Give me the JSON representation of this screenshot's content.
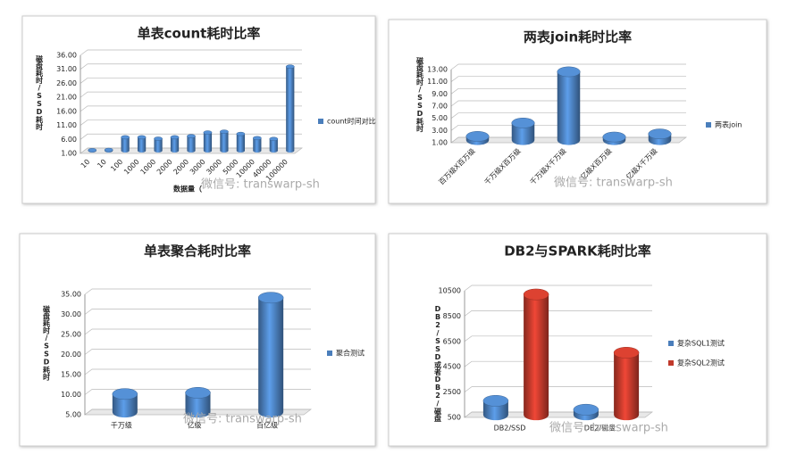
{
  "chart_data": [
    {
      "type": "bar",
      "title": "单表count耗时比率",
      "y_label": "磁盘耗时/SSD耗时",
      "x_label": "数据量（",
      "legend": "count时间对比",
      "watermark": "微信号: transwarp-sh",
      "color": "#4a7ebb",
      "categories": [
        "10",
        "10",
        "100",
        "1000",
        "1000",
        "2000",
        "2000",
        "3000",
        "3000",
        "5000",
        "10000",
        "40000",
        "100000"
      ],
      "values": [
        1.2,
        1.3,
        5.8,
        5.8,
        5.3,
        5.8,
        6.2,
        7.5,
        7.8,
        7.0,
        5.5,
        5.2,
        31.0
      ],
      "ylim": [
        1,
        36
      ],
      "yticks": [
        {
          "value": 1,
          "label": "1.00"
        },
        {
          "value": 6,
          "label": "6.00"
        },
        {
          "value": 11,
          "label": "11.00"
        },
        {
          "value": 16,
          "label": "16.00"
        },
        {
          "value": 21,
          "label": "21.00"
        },
        {
          "value": 26,
          "label": "26.00"
        },
        {
          "value": 31,
          "label": "31.00"
        },
        {
          "value": 36,
          "label": "36.00"
        }
      ]
    },
    {
      "type": "bar",
      "title": "两表join耗时比率",
      "y_label": "磁盘耗时/SSD耗时",
      "legend": "两表join",
      "watermark": "微信号: transwarp-sh",
      "color": "#4a7ebb",
      "categories": [
        "百万级X百万级",
        "千万级X百万级",
        "千万级X千万级",
        "亿级X百万级",
        "亿级X千万级"
      ],
      "values": [
        1.6,
        3.8,
        12.2,
        1.5,
        2.0
      ],
      "ylim": [
        1,
        13
      ],
      "yticks": [
        {
          "value": 1,
          "label": "1.00"
        },
        {
          "value": 3,
          "label": "3.00"
        },
        {
          "value": 5,
          "label": "5.00"
        },
        {
          "value": 7,
          "label": "7.00"
        },
        {
          "value": 9,
          "label": "9.00"
        },
        {
          "value": 11,
          "label": "11.00"
        },
        {
          "value": 13,
          "label": "13.00"
        }
      ]
    },
    {
      "type": "bar",
      "title": "单表聚合耗时比率",
      "y_label": "磁盘耗时/SSD耗时",
      "legend": "聚合测试",
      "watermark": "微信号: transwarp-sh",
      "color": "#4a7ebb",
      "categories": [
        "千万级",
        "亿级",
        "百亿级"
      ],
      "values": [
        9.5,
        9.8,
        33.5
      ],
      "ylim": [
        5,
        35
      ],
      "yticks": [
        {
          "value": 5,
          "label": "5.00"
        },
        {
          "value": 10,
          "label": "10.00"
        },
        {
          "value": 15,
          "label": "15.00"
        },
        {
          "value": 20,
          "label": "20.00"
        },
        {
          "value": 25,
          "label": "25.00"
        },
        {
          "value": 30,
          "label": "30.00"
        },
        {
          "value": 35,
          "label": "35.00"
        }
      ]
    },
    {
      "type": "grouped_bar",
      "title": "DB2与SPARK耗时比率",
      "y_label": "DB2/SSD或者DB2/磁盘",
      "watermark": "微信号: transwarp-sh",
      "categories": [
        "DB2/SSD",
        "DB2/磁盘"
      ],
      "series": [
        {
          "name": "复杂SQL1测试",
          "color": "#4a7ebb",
          "values": [
            1600,
            900
          ]
        },
        {
          "name": "复杂SQL2测试",
          "color": "#c0392b",
          "values": [
            10000,
            5400
          ]
        }
      ],
      "ylim": [
        500,
        10500
      ],
      "yticks": [
        500,
        2500,
        4500,
        6500,
        8500,
        10500
      ]
    }
  ]
}
